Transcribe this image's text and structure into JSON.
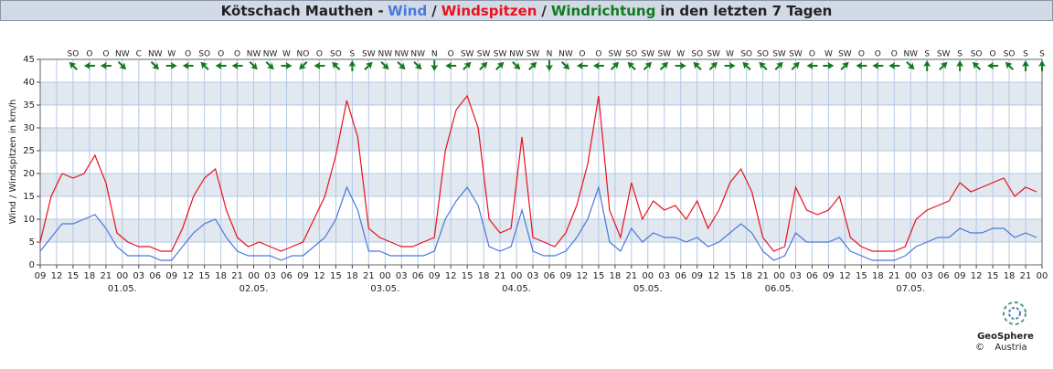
{
  "chart_data": {
    "type": "line",
    "title_prefix": "Kötschach Mauthen -",
    "title_separator": "/",
    "direction_label": "Windrichtung",
    "title_suffix": "in den letzten 7 Tagen",
    "ylabel": "Wind / Windspitzen in km/h",
    "ylim": [
      0,
      45
    ],
    "yticks": [
      0,
      5,
      10,
      15,
      20,
      25,
      30,
      35,
      40,
      45
    ],
    "grid": true,
    "band_color": "#e1e8f0",
    "xlim": [
      0,
      183
    ],
    "xticks": [
      {
        "value": 0,
        "label": "09"
      },
      {
        "value": 3,
        "label": "12"
      },
      {
        "value": 6,
        "label": "15"
      },
      {
        "value": 9,
        "label": "18"
      },
      {
        "value": 12,
        "label": "21"
      },
      {
        "value": 15,
        "label": "00"
      },
      {
        "value": 18,
        "label": "03"
      },
      {
        "value": 21,
        "label": "06"
      },
      {
        "value": 24,
        "label": "09"
      },
      {
        "value": 27,
        "label": "12"
      },
      {
        "value": 30,
        "label": "15"
      },
      {
        "value": 33,
        "label": "18"
      },
      {
        "value": 36,
        "label": "21"
      },
      {
        "value": 39,
        "label": "00"
      },
      {
        "value": 42,
        "label": "03"
      },
      {
        "value": 45,
        "label": "06"
      },
      {
        "value": 48,
        "label": "09"
      },
      {
        "value": 51,
        "label": "12"
      },
      {
        "value": 54,
        "label": "15"
      },
      {
        "value": 57,
        "label": "18"
      },
      {
        "value": 60,
        "label": "21"
      },
      {
        "value": 63,
        "label": "00"
      },
      {
        "value": 66,
        "label": "03"
      },
      {
        "value": 69,
        "label": "06"
      },
      {
        "value": 72,
        "label": "09"
      },
      {
        "value": 75,
        "label": "12"
      },
      {
        "value": 78,
        "label": "15"
      },
      {
        "value": 81,
        "label": "18"
      },
      {
        "value": 84,
        "label": "21"
      },
      {
        "value": 87,
        "label": "00"
      },
      {
        "value": 90,
        "label": "03"
      },
      {
        "value": 93,
        "label": "06"
      },
      {
        "value": 96,
        "label": "09"
      },
      {
        "value": 99,
        "label": "12"
      },
      {
        "value": 102,
        "label": "15"
      },
      {
        "value": 105,
        "label": "18"
      },
      {
        "value": 108,
        "label": "21"
      },
      {
        "value": 111,
        "label": "00"
      },
      {
        "value": 114,
        "label": "03"
      },
      {
        "value": 117,
        "label": "06"
      },
      {
        "value": 120,
        "label": "09"
      },
      {
        "value": 123,
        "label": "12"
      },
      {
        "value": 126,
        "label": "15"
      },
      {
        "value": 129,
        "label": "18"
      },
      {
        "value": 132,
        "label": "21"
      },
      {
        "value": 135,
        "label": "00"
      },
      {
        "value": 138,
        "label": "03"
      },
      {
        "value": 141,
        "label": "06"
      },
      {
        "value": 144,
        "label": "09"
      },
      {
        "value": 147,
        "label": "12"
      },
      {
        "value": 150,
        "label": "15"
      },
      {
        "value": 153,
        "label": "18"
      },
      {
        "value": 156,
        "label": "21"
      },
      {
        "value": 159,
        "label": "00"
      },
      {
        "value": 162,
        "label": "03"
      },
      {
        "value": 165,
        "label": "06"
      },
      {
        "value": 168,
        "label": "09"
      },
      {
        "value": 171,
        "label": "12"
      },
      {
        "value": 174,
        "label": "15"
      },
      {
        "value": 177,
        "label": "18"
      },
      {
        "value": 180,
        "label": "21"
      },
      {
        "value": 183,
        "label": "00"
      }
    ],
    "date_labels": [
      {
        "value": 15,
        "label": "01.05."
      },
      {
        "value": 39,
        "label": "02.05."
      },
      {
        "value": 63,
        "label": "03.05."
      },
      {
        "value": 87,
        "label": "04.05."
      },
      {
        "value": 111,
        "label": "05.05."
      },
      {
        "value": 135,
        "label": "06.05."
      },
      {
        "value": 159,
        "label": "07.05."
      }
    ],
    "x": [
      0,
      2,
      4,
      6,
      8,
      10,
      12,
      14,
      16,
      18,
      20,
      22,
      24,
      26,
      28,
      30,
      32,
      34,
      36,
      38,
      40,
      42,
      44,
      46,
      48,
      50,
      52,
      54,
      56,
      58,
      60,
      62,
      64,
      66,
      68,
      70,
      72,
      74,
      76,
      78,
      80,
      82,
      84,
      86,
      88,
      90,
      92,
      94,
      96,
      98,
      100,
      102,
      104,
      106,
      108,
      110,
      112,
      114,
      116,
      118,
      120,
      122,
      124,
      126,
      128,
      130,
      132,
      134,
      136,
      138,
      140,
      142,
      144,
      146,
      148,
      150,
      152,
      154,
      156,
      158,
      160,
      162,
      164,
      166,
      168,
      170,
      172,
      174,
      176,
      178,
      180,
      182
    ],
    "series": [
      {
        "name": "Wind",
        "color": "#4a78dc",
        "values": [
          3,
          6,
          9,
          9,
          10,
          11,
          8,
          4,
          2,
          2,
          2,
          1,
          1,
          4,
          7,
          9,
          10,
          6,
          3,
          2,
          2,
          2,
          1,
          2,
          2,
          4,
          6,
          10,
          17,
          12,
          3,
          3,
          2,
          2,
          2,
          2,
          3,
          10,
          14,
          17,
          13,
          4,
          3,
          4,
          12,
          3,
          2,
          2,
          3,
          6,
          10,
          17,
          5,
          3,
          8,
          5,
          7,
          6,
          6,
          5,
          6,
          4,
          5,
          7,
          9,
          7,
          3,
          1,
          2,
          7,
          5,
          5,
          5,
          6,
          3,
          2,
          1,
          1,
          1,
          2,
          4,
          5,
          6,
          6,
          8,
          7,
          7,
          8,
          8,
          6,
          7,
          6
        ]
      },
      {
        "name": "Windspitzen",
        "color": "#e8121c",
        "values": [
          5,
          15,
          20,
          19,
          20,
          24,
          18,
          7,
          5,
          4,
          4,
          3,
          3,
          8,
          15,
          19,
          21,
          12,
          6,
          4,
          5,
          4,
          3,
          4,
          5,
          10,
          15,
          24,
          36,
          28,
          8,
          6,
          5,
          4,
          4,
          5,
          6,
          25,
          34,
          37,
          30,
          10,
          7,
          8,
          28,
          6,
          5,
          4,
          7,
          13,
          22,
          37,
          12,
          6,
          18,
          10,
          14,
          12,
          13,
          10,
          14,
          8,
          12,
          18,
          21,
          16,
          6,
          3,
          4,
          17,
          12,
          11,
          12,
          15,
          6,
          4,
          3,
          3,
          3,
          4,
          10,
          12,
          13,
          14,
          18,
          16,
          17,
          18,
          19,
          15,
          17,
          16
        ]
      }
    ],
    "direction_color": "#117a1c",
    "directions": {
      "x": [
        6,
        9,
        12,
        15,
        18,
        21,
        24,
        27,
        30,
        33,
        36,
        39,
        42,
        45,
        48,
        51,
        54,
        57,
        60,
        63,
        66,
        69,
        72,
        75,
        78,
        81,
        84,
        87,
        90,
        93,
        96,
        99,
        102,
        105,
        108,
        111,
        114,
        117,
        120,
        123,
        126,
        129,
        132,
        135,
        138,
        141,
        144,
        147,
        150,
        153,
        156,
        159,
        162,
        165,
        168,
        171,
        174,
        177,
        180,
        183
      ],
      "labels": [
        "SO",
        "O",
        "O",
        "NW",
        "C",
        "NW",
        "W",
        "O",
        "SO",
        "O",
        "O",
        "NW",
        "NW",
        "W",
        "NO",
        "O",
        "SO",
        "S",
        "SW",
        "NW",
        "NW",
        "NW",
        "N",
        "O",
        "SW",
        "SW",
        "SW",
        "NW",
        "SW",
        "N",
        "NW",
        "O",
        "O",
        "SW",
        "SO",
        "SW",
        "SW",
        "W",
        "SO",
        "SW",
        "W",
        "SO",
        "SO",
        "SW",
        "SW",
        "O",
        "W",
        "SW",
        "O",
        "O",
        "O",
        "NW",
        "S",
        "SW",
        "S",
        "SO",
        "O",
        "SO",
        "S",
        "S"
      ]
    },
    "logo": {
      "copyright": "©",
      "name": "GeoSphere",
      "country": "Austria"
    }
  }
}
